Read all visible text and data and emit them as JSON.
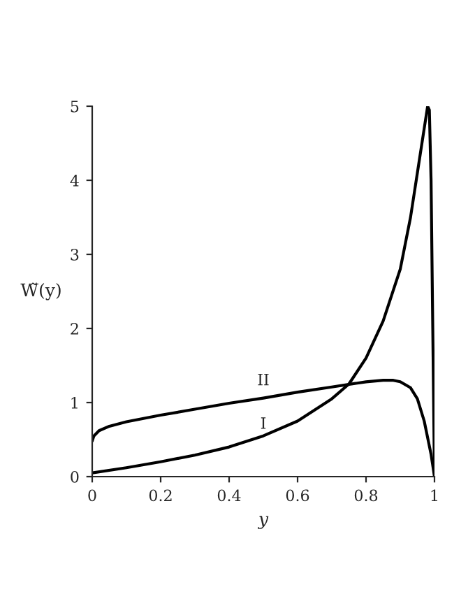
{
  "chart_data": {
    "type": "line",
    "xlabel": "y",
    "ylabel": "W̃(y)",
    "xlim": [
      0,
      1
    ],
    "ylim": [
      0,
      5
    ],
    "xticks": [
      0,
      0.2,
      0.4,
      0.6,
      0.8,
      1
    ],
    "yticks": [
      0,
      1,
      2,
      3,
      4,
      5
    ],
    "grid": false,
    "legend": false,
    "marker": "none",
    "line_style": "solid",
    "series": [
      {
        "name": "I",
        "color": "#000000",
        "x": [
          0,
          0.1,
          0.2,
          0.3,
          0.4,
          0.5,
          0.6,
          0.7,
          0.75,
          0.8,
          0.85,
          0.9,
          0.93,
          0.95,
          0.97,
          0.98,
          0.985,
          0.99,
          0.995,
          1.0
        ],
        "values": [
          0.05,
          0.12,
          0.2,
          0.29,
          0.4,
          0.55,
          0.75,
          1.05,
          1.25,
          1.6,
          2.1,
          2.8,
          3.5,
          4.1,
          4.7,
          5.0,
          4.95,
          4.0,
          2.0,
          0
        ]
      },
      {
        "name": "II",
        "color": "#000000",
        "x": [
          0,
          0.005,
          0.02,
          0.05,
          0.1,
          0.2,
          0.3,
          0.4,
          0.5,
          0.6,
          0.7,
          0.8,
          0.85,
          0.88,
          0.9,
          0.93,
          0.95,
          0.97,
          0.99,
          1.0
        ],
        "values": [
          0.48,
          0.55,
          0.62,
          0.68,
          0.74,
          0.83,
          0.91,
          0.99,
          1.06,
          1.14,
          1.21,
          1.28,
          1.3,
          1.3,
          1.28,
          1.2,
          1.05,
          0.75,
          0.3,
          0
        ]
      }
    ]
  }
}
